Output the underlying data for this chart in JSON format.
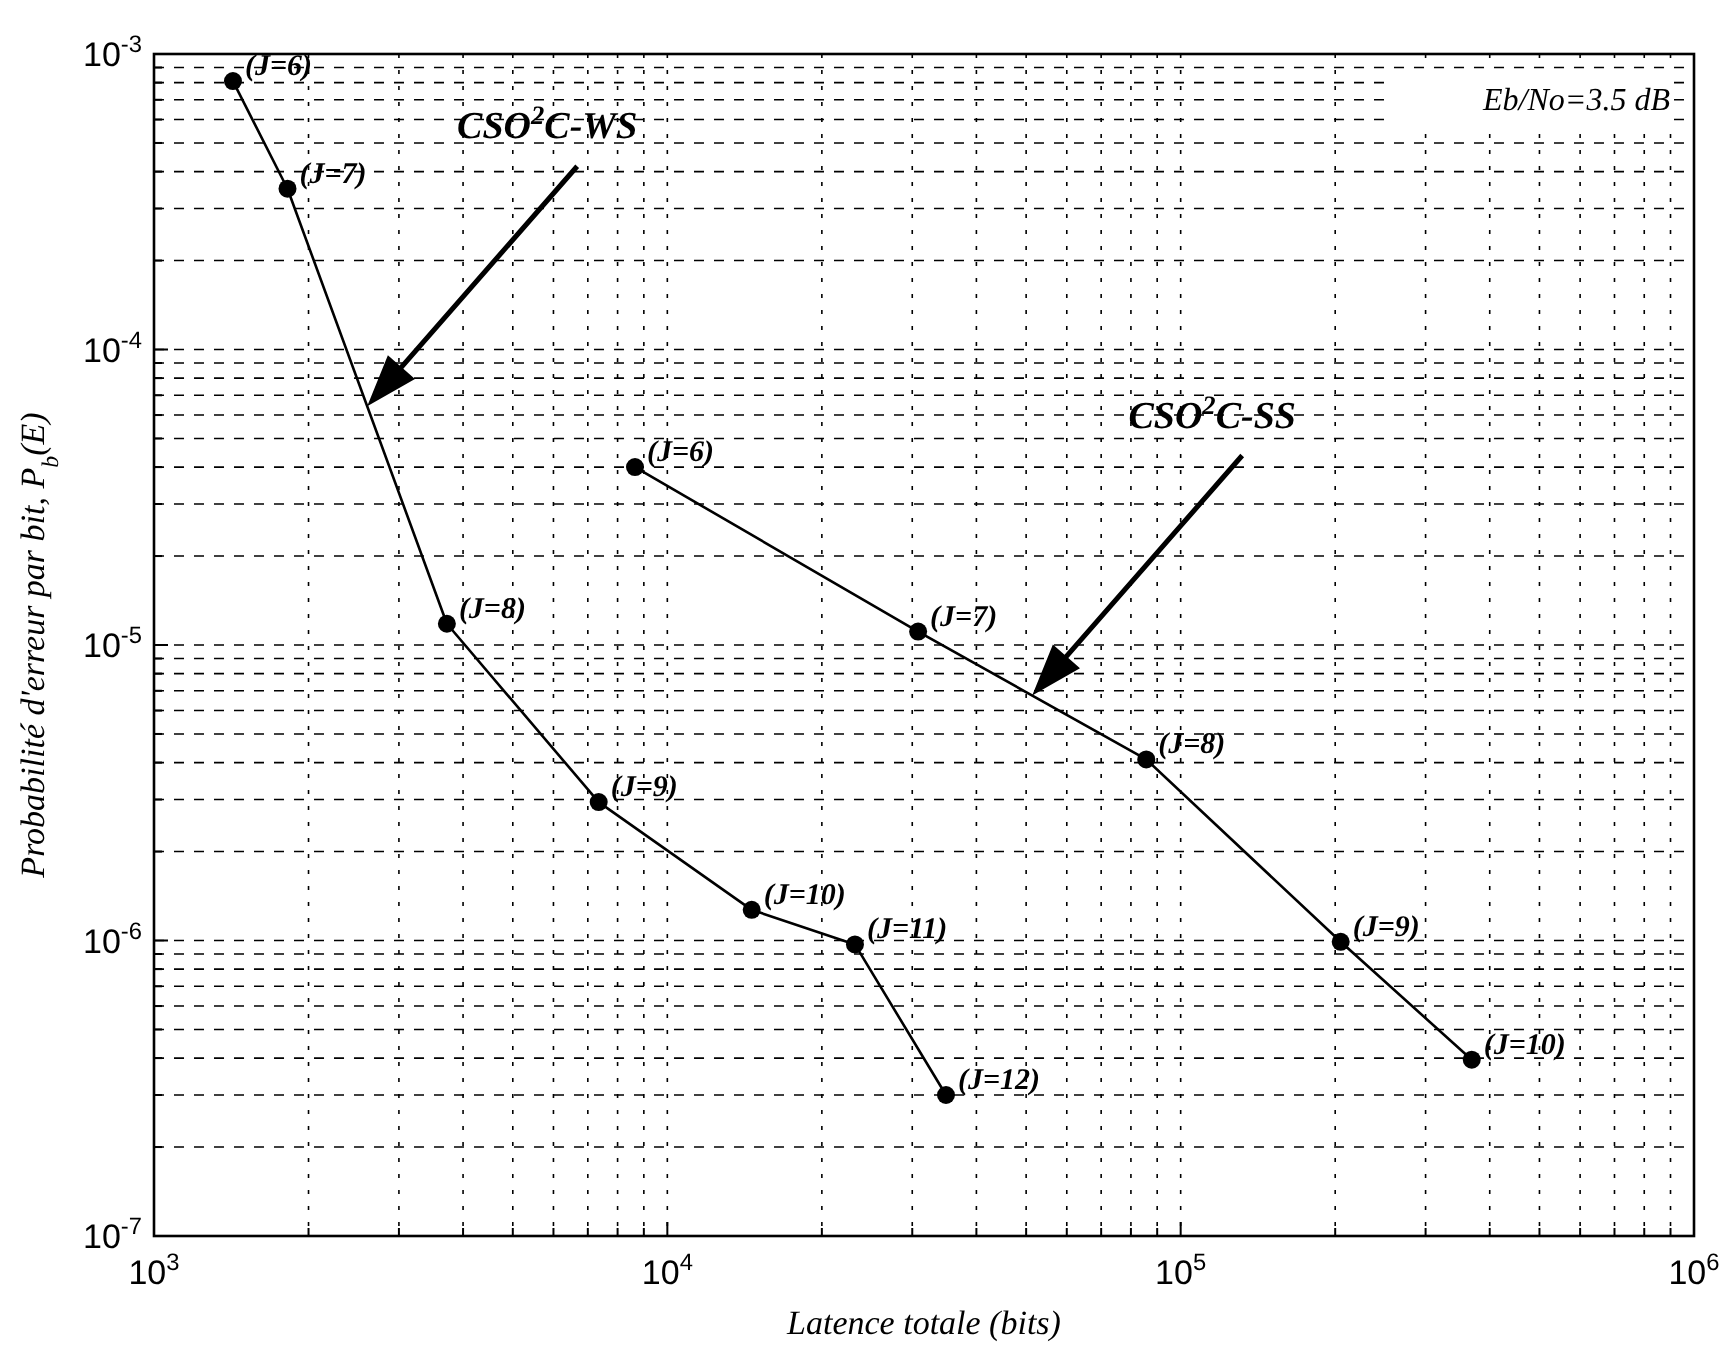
{
  "chart_data": {
    "type": "line",
    "xlabel": "Latence totale (bits)",
    "ylabel": "Probabilité d'erreur par bit, P$_{b}$(E)",
    "log": "xy",
    "grid": true,
    "legend": false,
    "marker": "circle",
    "line_style": "solid",
    "xlim": [
      1000,
      1000000
    ],
    "ylim": [
      1e-07,
      0.001
    ],
    "xticks": [
      {
        "value": 1000,
        "label": "10$^{3}$"
      },
      {
        "value": 2000,
        "label": null
      },
      {
        "value": 3000,
        "label": null
      },
      {
        "value": 4000,
        "label": null
      },
      {
        "value": 5000,
        "label": null
      },
      {
        "value": 6000,
        "label": null
      },
      {
        "value": 7000,
        "label": null
      },
      {
        "value": 8000,
        "label": null
      },
      {
        "value": 9000,
        "label": null
      },
      {
        "value": 10000,
        "label": "10$^{4}$"
      },
      {
        "value": 20000,
        "label": null
      },
      {
        "value": 30000,
        "label": null
      },
      {
        "value": 40000,
        "label": null
      },
      {
        "value": 50000,
        "label": null
      },
      {
        "value": 60000,
        "label": null
      },
      {
        "value": 70000,
        "label": null
      },
      {
        "value": 80000,
        "label": null
      },
      {
        "value": 90000,
        "label": null
      },
      {
        "value": 100000,
        "label": "10$^{5}$"
      },
      {
        "value": 200000,
        "label": null
      },
      {
        "value": 300000,
        "label": null
      },
      {
        "value": 400000,
        "label": null
      },
      {
        "value": 500000,
        "label": null
      },
      {
        "value": 600000,
        "label": null
      },
      {
        "value": 700000,
        "label": null
      },
      {
        "value": 800000,
        "label": null
      },
      {
        "value": 900000,
        "label": null
      },
      {
        "value": 1000000,
        "label": "10$^{6}$"
      }
    ],
    "yticks": [
      {
        "value": 1e-07,
        "label": "10$^{-7}$"
      },
      {
        "value": 2e-07,
        "label": null
      },
      {
        "value": 3e-07,
        "label": null
      },
      {
        "value": 4e-07,
        "label": null
      },
      {
        "value": 5e-07,
        "label": null
      },
      {
        "value": 6e-07,
        "label": null
      },
      {
        "value": 7e-07,
        "label": null
      },
      {
        "value": 8e-07,
        "label": null
      },
      {
        "value": 9e-07,
        "label": null
      },
      {
        "value": 1e-06,
        "label": "10$^{-6}$"
      },
      {
        "value": 2e-06,
        "label": null
      },
      {
        "value": 3e-06,
        "label": null
      },
      {
        "value": 4e-06,
        "label": null
      },
      {
        "value": 5e-06,
        "label": null
      },
      {
        "value": 6e-06,
        "label": null
      },
      {
        "value": 7e-06,
        "label": null
      },
      {
        "value": 8e-06,
        "label": null
      },
      {
        "value": 9e-06,
        "label": null
      },
      {
        "value": 1e-05,
        "label": "10$^{-5}$"
      },
      {
        "value": 2e-05,
        "label": null
      },
      {
        "value": 3e-05,
        "label": null
      },
      {
        "value": 4e-05,
        "label": null
      },
      {
        "value": 5e-05,
        "label": null
      },
      {
        "value": 6e-05,
        "label": null
      },
      {
        "value": 7e-05,
        "label": null
      },
      {
        "value": 8e-05,
        "label": null
      },
      {
        "value": 9e-05,
        "label": null
      },
      {
        "value": 0.0001,
        "label": "10$^{-4}$"
      },
      {
        "value": 0.0002,
        "label": null
      },
      {
        "value": 0.0003,
        "label": null
      },
      {
        "value": 0.0004,
        "label": null
      },
      {
        "value": 0.0005,
        "label": null
      },
      {
        "value": 0.0006,
        "label": null
      },
      {
        "value": 0.0007,
        "label": null
      },
      {
        "value": 0.0008,
        "label": null
      },
      {
        "value": 0.0009,
        "label": null
      },
      {
        "value": 0.001,
        "label": "10$^{-3}$"
      }
    ],
    "series": [
      {
        "color": "#000000",
        "x": [
          1425,
          1820,
          3720,
          7350,
          14600,
          23200,
          34900
        ],
        "values": [
          0.00081,
          0.00035,
          1.18e-05,
          2.94e-06,
          1.27e-06,
          9.7e-07,
          3e-07
        ]
      },
      {
        "color": "#000000",
        "x": [
          8650,
          30800,
          85700,
          205000,
          369000
        ],
        "values": [
          4e-05,
          1.11e-05,
          4.1e-06,
          9.9e-07,
          3.95e-07
        ]
      }
    ],
    "annotations": [
      {
        "text": "(J=6)",
        "x": 1425,
        "y": 0.00081
      },
      {
        "text": "(J=7)",
        "x": 1820,
        "y": 0.00035
      },
      {
        "text": "(J=8)",
        "x": 3720,
        "y": 1.18e-05
      },
      {
        "text": "(J=9)",
        "x": 7350,
        "y": 2.94e-06
      },
      {
        "text": "(J=10)",
        "x": 14600,
        "y": 1.27e-06
      },
      {
        "text": "(J=11)",
        "x": 23200,
        "y": 9.7e-07
      },
      {
        "text": "(J=12)",
        "x": 34900,
        "y": 3e-07
      },
      {
        "text": "(J=6)",
        "x": 8650,
        "y": 4e-05
      },
      {
        "text": "(J=7)",
        "x": 30800,
        "y": 1.11e-05
      },
      {
        "text": "(J=8)",
        "x": 85700,
        "y": 4.1e-06
      },
      {
        "text": "(J=9)",
        "x": 205000,
        "y": 9.9e-07
      },
      {
        "text": "(J=10)",
        "x": 369000,
        "y": 3.95e-07
      },
      "CSO$^{2}$C-WS",
      "CSO$^{2}$C-SS",
      "Eb/No=3.5 dB"
    ]
  }
}
